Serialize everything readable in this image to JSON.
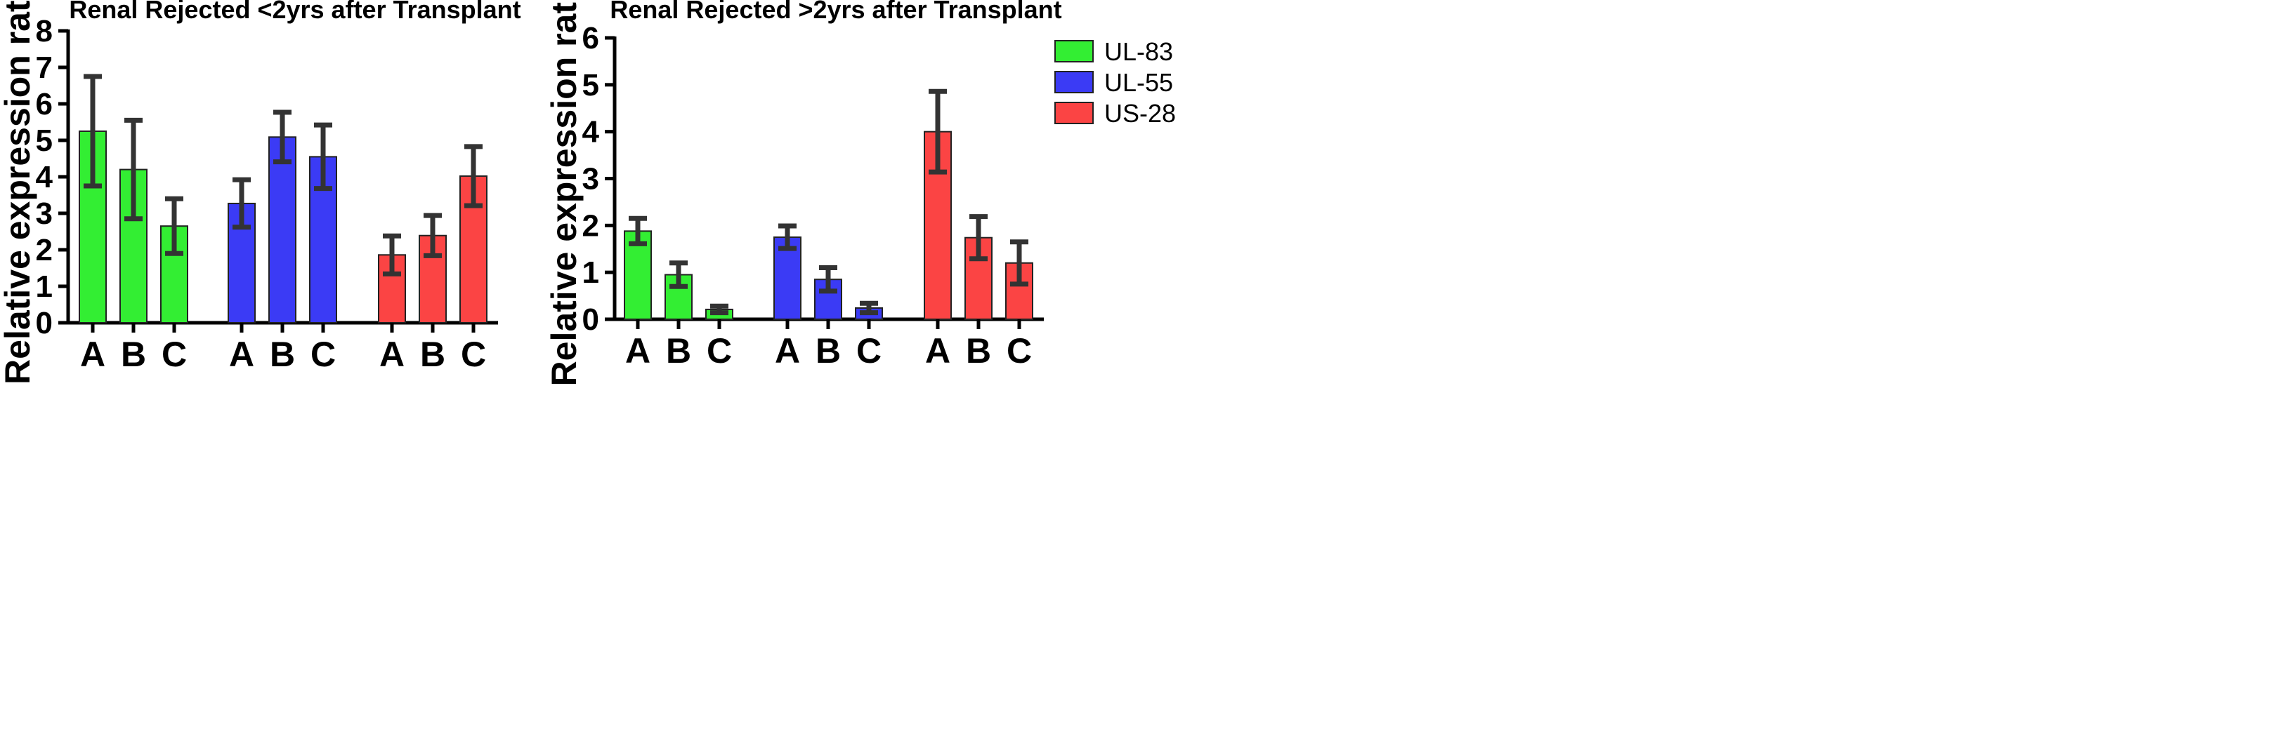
{
  "chart_data": [
    {
      "type": "bar",
      "title": "Renal Rejected <2yrs after Transplant",
      "xlabel": "",
      "ylabel": "Relative expression ratio",
      "ylim": [
        0,
        8
      ],
      "yticks": [
        0,
        1,
        2,
        3,
        4,
        5,
        6,
        7,
        8
      ],
      "grid": false,
      "categories": [
        "A",
        "B",
        "C"
      ],
      "series": [
        {
          "name": "UL-83",
          "color": "#33ee33",
          "values": [
            5.25,
            4.2,
            2.65
          ],
          "errors": [
            1.5,
            1.35,
            0.75
          ]
        },
        {
          "name": "UL-55",
          "color": "#3b3bf5",
          "values": [
            3.27,
            5.09,
            4.55
          ],
          "errors": [
            0.65,
            0.68,
            0.87
          ]
        },
        {
          "name": "US-28",
          "color": "#fb4444",
          "values": [
            1.86,
            2.39,
            4.02
          ],
          "errors": [
            0.52,
            0.55,
            0.81
          ]
        }
      ]
    },
    {
      "type": "bar",
      "title": "Renal Rejected >2yrs after Transplant",
      "xlabel": "",
      "ylabel": "Relative expression ratio",
      "ylim": [
        0,
        6
      ],
      "yticks": [
        0,
        1,
        2,
        3,
        4,
        5,
        6
      ],
      "grid": false,
      "legend_position": "top-right",
      "categories": [
        "A",
        "B",
        "C"
      ],
      "series": [
        {
          "name": "UL-83",
          "color": "#33ee33",
          "values": [
            1.88,
            0.95,
            0.21
          ],
          "errors": [
            0.27,
            0.25,
            0.07
          ]
        },
        {
          "name": "UL-55",
          "color": "#3b3bf5",
          "values": [
            1.75,
            0.85,
            0.24
          ],
          "errors": [
            0.24,
            0.25,
            0.1
          ]
        },
        {
          "name": "US-28",
          "color": "#fb4444",
          "values": [
            4.0,
            1.74,
            1.2
          ],
          "errors": [
            0.86,
            0.45,
            0.45
          ]
        }
      ]
    }
  ]
}
